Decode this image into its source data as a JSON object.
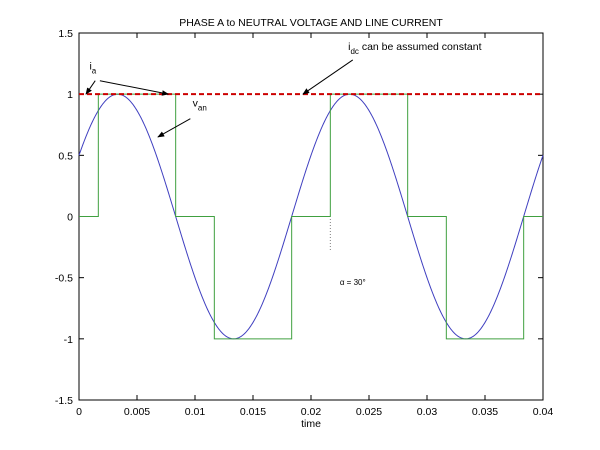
{
  "chart_data": {
    "type": "line",
    "title": "PHASE A to NEUTRAL VOLTAGE AND LINE CURRENT",
    "xlabel": "time",
    "ylabel": "",
    "xlim": [
      0,
      0.04
    ],
    "ylim": [
      -1.5,
      1.5
    ],
    "grid": false,
    "x_ticks": [
      "0",
      "0.005",
      "0.01",
      "0.015",
      "0.02",
      "0.025",
      "0.03",
      "0.035",
      "0.04"
    ],
    "y_ticks": [
      "-1.5",
      "-1",
      "-0.5",
      "0",
      "0.5",
      "1",
      "1.5"
    ],
    "colors": {
      "van": "#4040c0",
      "ia": "#40a040",
      "idc": "#cc0000",
      "frame": "#000000",
      "guide": "#808080"
    },
    "series": [
      {
        "id": "van",
        "function": "sin",
        "amplitude": 1,
        "frequency_hz": 50,
        "peak_x": 0.0033333,
        "x_start": 0,
        "x_end": 0.04
      },
      {
        "id": "ia",
        "x": [
          0,
          0.0016667,
          0.0016667,
          0.0083333,
          0.0083333,
          0.0116667,
          0.0116667,
          0.0183333,
          0.0183333,
          0.0216667,
          0.0216667,
          0.0283333,
          0.0283333,
          0.0316667,
          0.0316667,
          0.0383333,
          0.0383333,
          0.04
        ],
        "y": [
          0,
          0,
          1,
          1,
          0,
          0,
          -1,
          -1,
          0,
          0,
          1,
          1,
          0,
          0,
          -1,
          -1,
          0,
          0
        ]
      },
      {
        "id": "idc",
        "x": [
          0,
          0.04
        ],
        "y": [
          1,
          1
        ]
      }
    ],
    "annotations": {
      "ia": {
        "main": "i",
        "sub": "a",
        "text_x": 0.0009,
        "text_y": 1.2,
        "arrow_to": [
          0.0077,
          1.0
        ]
      },
      "van": {
        "main": "v",
        "sub": "an",
        "text_x": 0.0098,
        "text_y": 0.9,
        "arrow_to": [
          0.0068,
          0.65
        ]
      },
      "idc": {
        "main": "i",
        "sub": "dc",
        "rest": " can be assumed constant",
        "text_x": 0.0232,
        "text_y": 1.36,
        "arrow_to": [
          0.0193,
          1.0
        ]
      },
      "alpha": {
        "text": "α = 30°",
        "text_x": 0.0236,
        "text_y": -0.56,
        "guide_x": 0.0216667,
        "guide_y_top": -0.02,
        "guide_y_bottom": -0.28
      }
    }
  }
}
